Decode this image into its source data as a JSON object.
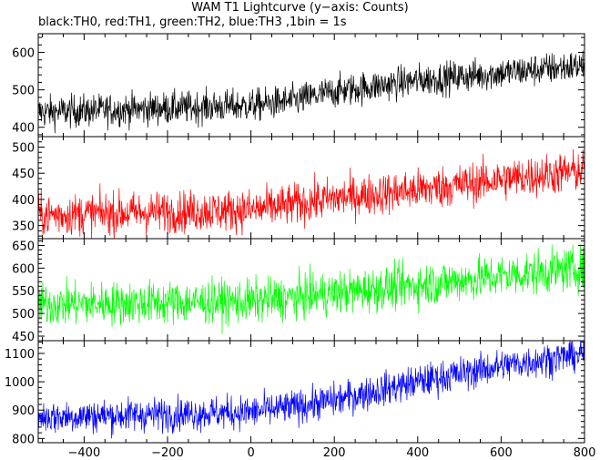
{
  "title": "WAM T1 Lightcurve (y−axis: Counts)",
  "subtitle": "black:TH0, red:TH1, green:TH2, blue:TH3 ,1bin = 1s",
  "chart_data": {
    "type": "line",
    "xlim": [
      -510,
      800
    ],
    "bin_seconds": 1,
    "x_ticks": [
      -400,
      -200,
      0,
      200,
      400,
      600,
      800
    ],
    "x_tick_labels": [
      "−400",
      "−200",
      "0",
      "200",
      "400",
      "600",
      "800"
    ],
    "panels": [
      {
        "channel": "TH0",
        "color": "#000000",
        "ylim": [
          375,
          650
        ],
        "y_ticks": [
          400,
          500,
          600
        ],
        "y_tick_labels": [
          "400",
          "500",
          "600"
        ],
        "trend": {
          "x": [
            -510,
            0,
            100,
            200,
            400,
            600,
            800
          ],
          "y": [
            440,
            458,
            470,
            495,
            525,
            545,
            565
          ]
        },
        "noise": 22
      },
      {
        "channel": "TH1",
        "color": "#ff0000",
        "ylim": [
          325,
          520
        ],
        "y_ticks": [
          350,
          400,
          450,
          500
        ],
        "y_tick_labels": [
          "350",
          "400",
          "450",
          "500"
        ],
        "trend": {
          "x": [
            -510,
            0,
            100,
            200,
            400,
            600,
            800
          ],
          "y": [
            370,
            380,
            390,
            402,
            418,
            438,
            455
          ]
        },
        "noise": 20
      },
      {
        "channel": "TH2",
        "color": "#00ff00",
        "ylim": [
          440,
          665
        ],
        "y_ticks": [
          450,
          500,
          550,
          600,
          650
        ],
        "y_tick_labels": [
          "450",
          "500",
          "550",
          "600",
          "650"
        ],
        "trend": {
          "x": [
            -510,
            0,
            100,
            200,
            400,
            600,
            800
          ],
          "y": [
            520,
            527,
            535,
            545,
            563,
            583,
            600
          ]
        },
        "noise": 24
      },
      {
        "channel": "TH3",
        "color": "#0000ff",
        "ylim": [
          785,
          1145
        ],
        "y_ticks": [
          800,
          900,
          1000,
          1100
        ],
        "y_tick_labels": [
          "800",
          "900",
          "1000",
          "1100"
        ],
        "trend": {
          "x": [
            -510,
            0,
            100,
            200,
            400,
            600,
            800
          ],
          "y": [
            875,
            893,
            910,
            935,
            1000,
            1055,
            1100
          ]
        },
        "noise": 30
      }
    ]
  }
}
